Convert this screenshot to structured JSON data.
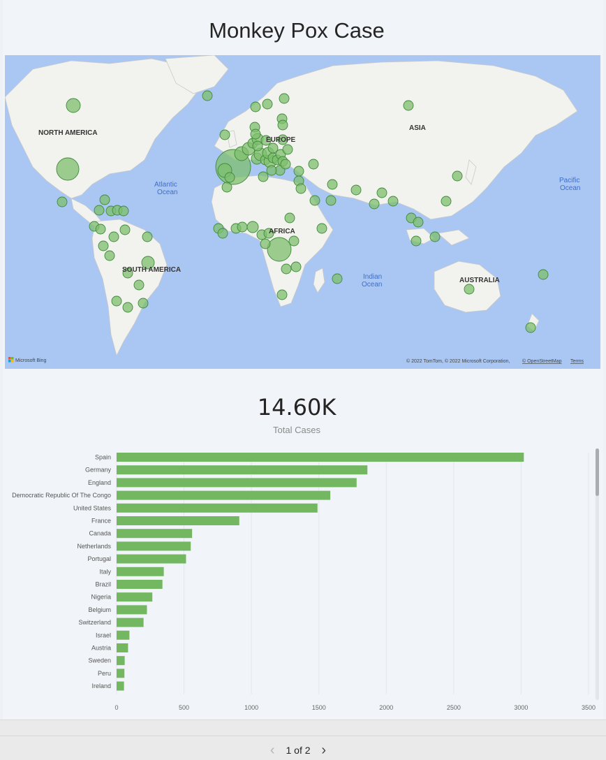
{
  "report": {
    "title": "Monkey Pox Case"
  },
  "map": {
    "continents": [
      "NORTH AMERICA",
      "EUROPE",
      "ASIA",
      "AFRICA",
      "SOUTH AMERICA",
      "AUSTRALIA"
    ],
    "oceans": [
      "Atlantic Ocean",
      "Indian Ocean",
      "Pacific Ocean"
    ],
    "bubble_color": "#7dbf6e",
    "land_color": "#f2f2ee",
    "water_color": "#a9c7f2",
    "logo_text": "Microsoft Bing",
    "copyright": "© 2022 TomTom, © 2022 Microsoft Corporation,",
    "osm_link": "© OpenStreetMap",
    "terms_link": "Terms"
  },
  "kpi": {
    "value": "14.60K",
    "label": "Total Cases"
  },
  "chart_data": {
    "type": "bar",
    "orientation": "horizontal",
    "categories": [
      "Spain",
      "Germany",
      "England",
      "Democratic Republic Of The Congo",
      "United States",
      "France",
      "Canada",
      "Netherlands",
      "Portugal",
      "Italy",
      "Brazil",
      "Nigeria",
      "Belgium",
      "Switzerland",
      "Israel",
      "Austria",
      "Sweden",
      "Peru",
      "Ireland"
    ],
    "values": [
      3020,
      1860,
      1780,
      1585,
      1490,
      910,
      560,
      550,
      515,
      350,
      340,
      265,
      225,
      200,
      95,
      85,
      60,
      58,
      55
    ],
    "xlim": [
      0,
      3500
    ],
    "xticks": [
      0,
      500,
      1000,
      1500,
      2000,
      2500,
      3000,
      3500
    ],
    "bar_color": "#73b761",
    "grid": true
  },
  "pager": {
    "text": "1 of 2",
    "prev_icon": "chevron-left-icon",
    "next_icon": "chevron-right-icon"
  }
}
